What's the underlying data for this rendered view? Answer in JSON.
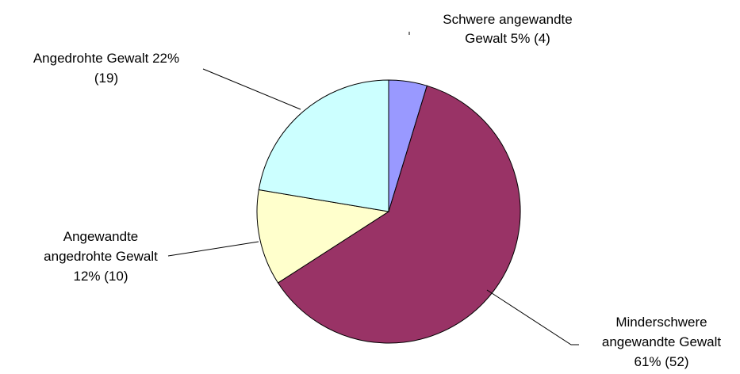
{
  "chart_data": {
    "type": "pie",
    "title": "",
    "slices": [
      {
        "name": "Schwere angewandte Gewalt",
        "value": 4,
        "percent": 5,
        "color": "#9999ff",
        "label_lines": [
          "Schwere angewandte",
          "Gewalt 5% (4)"
        ]
      },
      {
        "name": "Minderschwere angewandte Gewalt",
        "value": 52,
        "percent": 61,
        "color": "#993366",
        "label_lines": [
          "Minderschwere",
          "angewandte Gewalt",
          "61% (52)"
        ]
      },
      {
        "name": "Angewandte angedrohte Gewalt",
        "value": 10,
        "percent": 12,
        "color": "#ffffcc",
        "label_lines": [
          "Angewandte",
          "angedrohte Gewalt",
          "12% (10)"
        ]
      },
      {
        "name": "Angedrohte Gewalt",
        "value": 19,
        "percent": 22,
        "color": "#ccffff",
        "label_lines": [
          "Angedrohte Gewalt 22%",
          "(19)"
        ]
      }
    ],
    "start_angle": "12 o'clock",
    "direction": "clockwise",
    "legend": "none"
  }
}
